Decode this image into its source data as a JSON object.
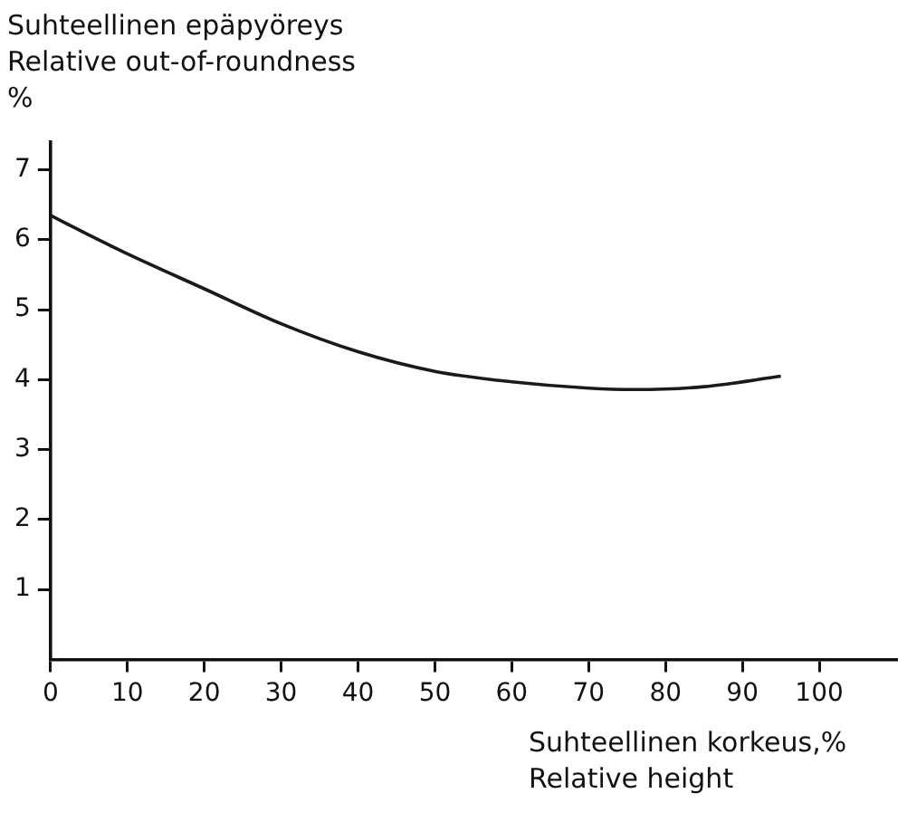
{
  "chart_data": {
    "type": "line",
    "ylabel": "Suhteellinen epäpyöreys\nRelative out-of-roundness\n%",
    "xlabel": "Suhteellinen korkeus,%\nRelative height",
    "series": [
      {
        "color": "#1a1a1a",
        "x": [
          0,
          5,
          10,
          20,
          30,
          40,
          50,
          60,
          70,
          76,
          85,
          95
        ],
        "values": [
          6.35,
          6.07,
          5.8,
          5.3,
          4.8,
          4.4,
          4.12,
          3.97,
          3.88,
          3.86,
          3.9,
          4.05
        ]
      }
    ],
    "xlim": [
      0,
      110
    ],
    "xticks": [
      0,
      10,
      20,
      30,
      40,
      50,
      60,
      70,
      80,
      90,
      100
    ],
    "ylim": [
      0,
      7.4
    ],
    "yticks": [
      1,
      2,
      3,
      4,
      5,
      6,
      7
    ],
    "grid": false,
    "legend": false,
    "marker": "none",
    "line_style": "solid"
  }
}
